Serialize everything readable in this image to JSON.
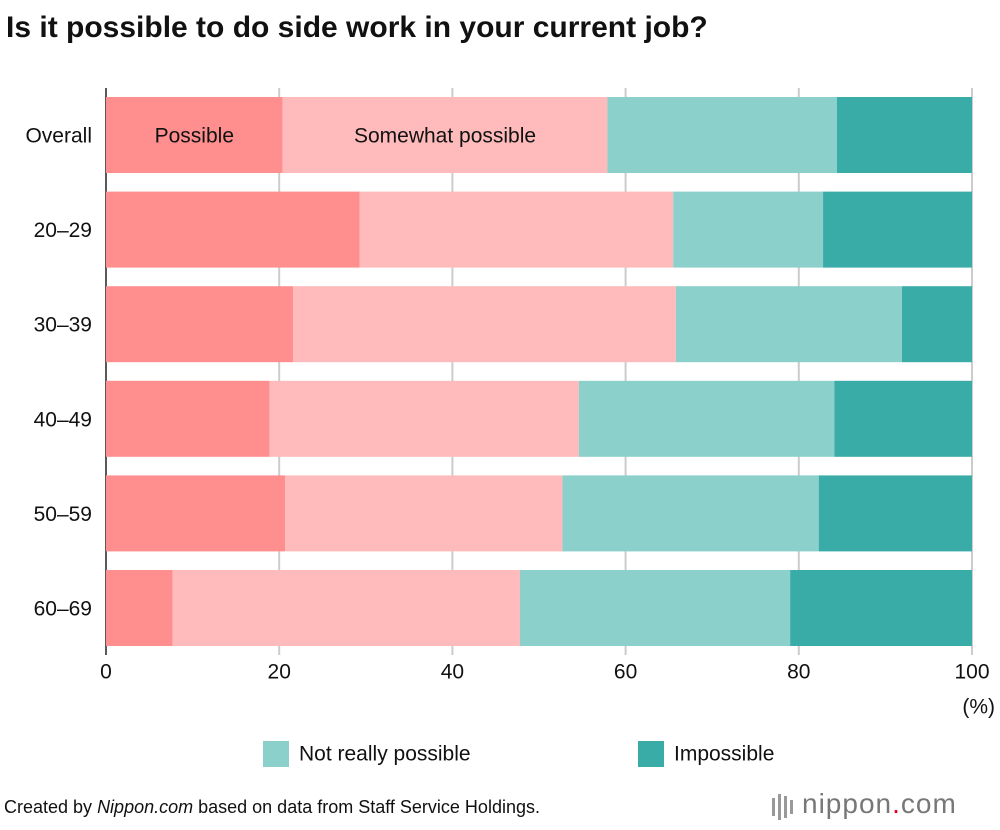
{
  "chart_data": {
    "type": "stacked-bar-horizontal",
    "title": "Is it possible to do side work in your current job?",
    "categories": [
      "Overall",
      "20–29",
      "30–39",
      "40–49",
      "50–59",
      "60–69"
    ],
    "series": [
      {
        "name": "Possible",
        "color": "#ff8f8f",
        "values": [
          20.4,
          29.3,
          21.6,
          18.9,
          20.7,
          7.7
        ]
      },
      {
        "name": "Somewhat possible",
        "color": "#ffbbbb",
        "values": [
          37.5,
          36.2,
          44.2,
          35.7,
          32.0,
          40.1
        ]
      },
      {
        "name": "Not really possible",
        "color": "#8bd0cb",
        "values": [
          26.5,
          17.3,
          26.1,
          29.5,
          29.6,
          31.2
        ]
      },
      {
        "name": "Impossible",
        "color": "#3aaca7",
        "values": [
          15.6,
          17.2,
          8.1,
          15.9,
          17.7,
          21.0
        ]
      }
    ],
    "xlim": [
      0,
      100
    ],
    "xticks": [
      0,
      20,
      40,
      60,
      80,
      100
    ],
    "x_unit": "(%)",
    "grid": true,
    "source": {
      "prefix": "Created by ",
      "site": "Nippon.com",
      "suffix": " based on data from Staff Service Holdings."
    },
    "logo": [
      "nippon",
      ".",
      "com"
    ]
  }
}
